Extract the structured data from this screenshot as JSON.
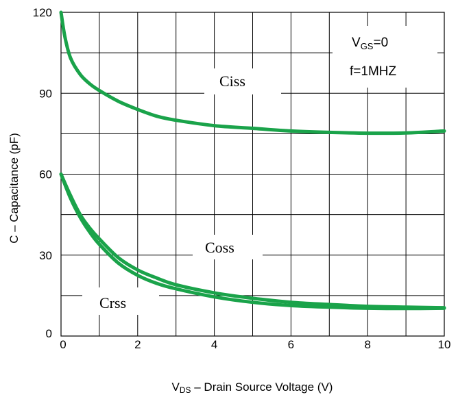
{
  "chart_data": {
    "type": "line",
    "xlabel": {
      "prefix": "V",
      "sub": "DS",
      "rest": " – Drain Source Voltage (V)"
    },
    "ylabel": "C – Capacitance    (pF)",
    "xlim": [
      0,
      10
    ],
    "ylim": [
      0,
      120
    ],
    "x_ticks": [
      0,
      2,
      4,
      6,
      8,
      10
    ],
    "y_ticks": [
      0,
      30,
      60,
      90,
      120
    ],
    "grid": true,
    "line_color": "#1aa34a",
    "series": [
      {
        "name": "Ciss",
        "x": [
          0,
          0.1,
          0.25,
          0.5,
          0.75,
          1,
          1.5,
          2,
          2.5,
          3,
          4,
          5,
          6,
          7,
          8,
          9,
          10
        ],
        "values": [
          120,
          111,
          103,
          97,
          93.5,
          91,
          87,
          84,
          81.5,
          80,
          78,
          77,
          76,
          75.5,
          75.2,
          75.3,
          76
        ]
      },
      {
        "name": "Coss",
        "x": [
          0,
          0.25,
          0.5,
          0.75,
          1,
          1.5,
          2,
          2.5,
          3,
          4,
          5,
          6,
          7,
          8,
          9,
          10
        ],
        "values": [
          60,
          52,
          45,
          40,
          36,
          29,
          24.5,
          21.5,
          19,
          16,
          14,
          12.5,
          11.7,
          11,
          10.7,
          10.5
        ]
      },
      {
        "name": "Crss",
        "x": [
          0,
          0.25,
          0.5,
          0.75,
          1,
          1.5,
          2,
          2.5,
          3,
          4,
          5,
          6,
          7,
          8,
          9,
          10
        ],
        "values": [
          60,
          51,
          44,
          38.5,
          34,
          27,
          22.5,
          19.5,
          17.5,
          14.5,
          12.5,
          11.3,
          10.7,
          10.3,
          10.2,
          10.3
        ]
      }
    ],
    "annotations": {
      "vgs": {
        "prefix": "V",
        "sub": "GS",
        "rest": "=0"
      },
      "freq": "f=1MHZ"
    }
  }
}
